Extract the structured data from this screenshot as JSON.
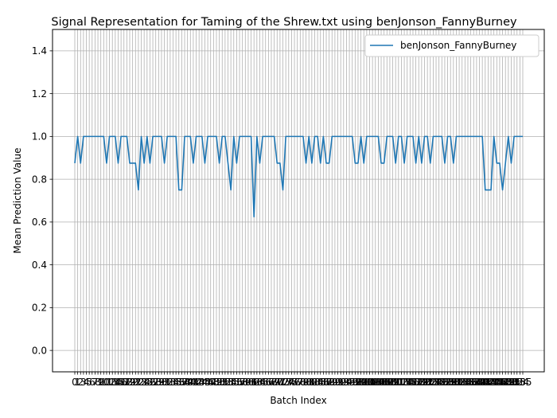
{
  "chart_data": {
    "type": "line",
    "title": "Signal Representation for Taming of the Shrew.txt using benJonson_FannyBurney",
    "xlabel": "Batch Index",
    "ylabel": "Mean Prediction Value",
    "ylim": [
      -0.1,
      1.5
    ],
    "yticks": [
      "0.0",
      "0.2",
      "0.4",
      "0.6",
      "0.8",
      "1.0",
      "1.2",
      "1.4"
    ],
    "ytick_values": [
      0.0,
      0.2,
      0.4,
      0.6,
      0.8,
      1.0,
      1.2,
      1.4
    ],
    "grid": true,
    "legend_position": "top-right",
    "series": [
      {
        "name": "benJonson_FannyBurney",
        "color": "#1f77b4",
        "values": [
          0.875,
          1.0,
          0.875,
          1.0,
          1.0,
          1.0,
          1.0,
          1.0,
          1.0,
          1.0,
          1.0,
          0.875,
          1.0,
          1.0,
          1.0,
          0.875,
          1.0,
          1.0,
          1.0,
          0.875,
          0.875,
          0.875,
          0.75,
          1.0,
          0.875,
          1.0,
          0.875,
          1.0,
          1.0,
          1.0,
          1.0,
          0.875,
          1.0,
          1.0,
          1.0,
          1.0,
          0.75,
          0.75,
          1.0,
          1.0,
          1.0,
          0.875,
          1.0,
          1.0,
          1.0,
          0.875,
          1.0,
          1.0,
          1.0,
          1.0,
          0.875,
          1.0,
          1.0,
          0.875,
          0.75,
          1.0,
          0.875,
          1.0,
          1.0,
          1.0,
          1.0,
          1.0,
          0.625,
          1.0,
          0.875,
          1.0,
          1.0,
          1.0,
          1.0,
          1.0,
          0.875,
          0.875,
          0.75,
          1.0,
          1.0,
          1.0,
          1.0,
          1.0,
          1.0,
          1.0,
          0.875,
          1.0,
          0.875,
          1.0,
          1.0,
          0.875,
          1.0,
          0.875,
          0.875,
          1.0,
          1.0,
          1.0,
          1.0,
          1.0,
          1.0,
          1.0,
          1.0,
          0.875,
          0.875,
          1.0,
          0.875,
          1.0,
          1.0,
          1.0,
          1.0,
          1.0,
          0.875,
          0.875,
          1.0,
          1.0,
          1.0,
          0.875,
          1.0,
          1.0,
          0.875,
          1.0,
          1.0,
          1.0,
          0.875,
          1.0,
          0.875,
          1.0,
          1.0,
          0.875,
          1.0,
          1.0,
          1.0,
          1.0,
          0.875,
          1.0,
          1.0,
          0.875,
          1.0,
          1.0,
          1.0,
          1.0,
          1.0,
          1.0,
          1.0,
          1.0,
          1.0,
          1.0,
          0.75,
          0.75,
          0.75,
          1.0,
          0.875,
          0.875,
          0.75,
          0.875,
          1.0,
          0.875,
          1.0,
          1.0,
          1.0,
          1.0
        ]
      }
    ]
  }
}
